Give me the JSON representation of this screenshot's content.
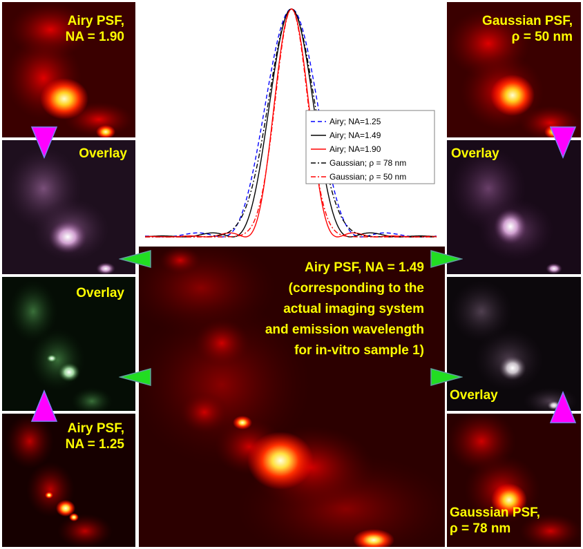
{
  "panels": {
    "airy_190": {
      "caption_line1": "Airy PSF,",
      "caption_line2": "NA = 1.90"
    },
    "gauss_50": {
      "caption_line1": "Gaussian PSF,",
      "caption_line2": "ρ = 50 nm"
    },
    "overlay_left_top": {
      "caption": "Overlay"
    },
    "overlay_left_bottom": {
      "caption": "Overlay"
    },
    "overlay_right_top": {
      "caption": "Overlay"
    },
    "overlay_right_bottom": {
      "caption": "Overlay"
    },
    "airy_125": {
      "caption_line1": "Airy PSF,",
      "caption_line2": "NA = 1.25"
    },
    "gauss_78": {
      "caption_line1": "Gaussian PSF,",
      "caption_line2": "ρ = 78 nm"
    },
    "center": {
      "lines": [
        "Airy PSF, NA = 1.49",
        "(corresponding to the",
        "actual imaging system",
        "and emission wavelength",
        "for in-vitro sample 1)"
      ]
    }
  },
  "colors": {
    "caption": "#ffff00",
    "magenta_arrow": "#ff00ff",
    "green_arrow": "#22dd22",
    "airy_125": "#0000ff",
    "airy_149": "#000000",
    "airy_190": "#ff0000",
    "gauss_78": "#000000",
    "gauss_50": "#ff0000"
  },
  "chart_data": {
    "type": "line",
    "title": "",
    "xlabel": "",
    "ylabel": "",
    "series": [
      {
        "name": "Airy; NA=1.25",
        "kind": "airy",
        "width": 1.0,
        "style": "dashed",
        "color": "#0000ff"
      },
      {
        "name": "Airy; NA=1.49",
        "kind": "airy",
        "width": 0.84,
        "style": "solid",
        "color": "#000000"
      },
      {
        "name": "Airy; NA=1.90",
        "kind": "airy",
        "width": 0.66,
        "style": "solid",
        "color": "#ff0000"
      },
      {
        "name": "Gaussian; ρ =  78 nm",
        "kind": "gauss",
        "width": 0.84,
        "style": "dashdot",
        "color": "#000000"
      },
      {
        "name": "Gaussian; ρ = 50 nm",
        "kind": "gauss",
        "width": 0.6,
        "style": "dashdot",
        "color": "#ff0000"
      }
    ],
    "xlim": [
      -3,
      3
    ],
    "ylim": [
      0,
      1
    ],
    "legend": "center-right",
    "grid": false
  }
}
